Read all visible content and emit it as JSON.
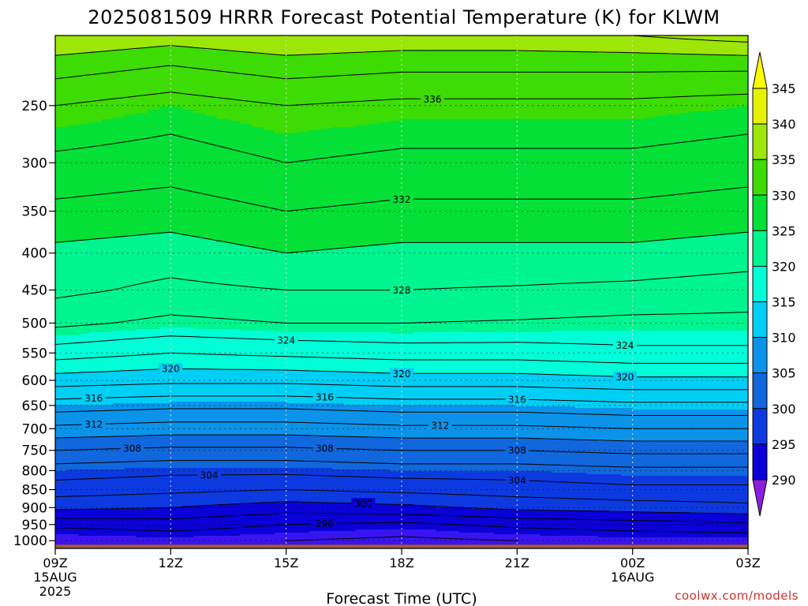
{
  "chart_data": {
    "type": "heatmap",
    "title": "2025081509 HRRR Forecast Potential Temperature (K) for KLWM",
    "xlabel": "Forecast Time (UTC)",
    "units": "K",
    "x_ticks": [
      {
        "hour": 0,
        "label": "09Z",
        "sub1": "15AUG",
        "sub2": "2025"
      },
      {
        "hour": 3,
        "label": "12Z",
        "sub1": "",
        "sub2": ""
      },
      {
        "hour": 6,
        "label": "15Z",
        "sub1": "",
        "sub2": ""
      },
      {
        "hour": 9,
        "label": "18Z",
        "sub1": "",
        "sub2": ""
      },
      {
        "hour": 12,
        "label": "21Z",
        "sub1": "",
        "sub2": ""
      },
      {
        "hour": 15,
        "label": "00Z",
        "sub1": "16AUG",
        "sub2": ""
      },
      {
        "hour": 18,
        "label": "03Z",
        "sub1": "",
        "sub2": ""
      }
    ],
    "xlim": [
      0,
      18
    ],
    "y_ticks": [
      250,
      300,
      350,
      400,
      450,
      500,
      550,
      600,
      650,
      700,
      750,
      800,
      850,
      900,
      950,
      1000
    ],
    "ylim": [
      1025,
      200
    ],
    "y_scale": "log",
    "colorbar": {
      "levels": [
        290,
        295,
        300,
        305,
        310,
        315,
        320,
        325,
        330,
        335,
        340,
        345
      ],
      "colors": [
        "#8a1fe0",
        "#3a14f0",
        "#0a00d8",
        "#0d3ae0",
        "#1167dd",
        "#0b93ea",
        "#00cff5",
        "#00ffd8",
        "#00f590",
        "#05e036",
        "#3ddc04",
        "#9de607",
        "#e6f204",
        "#fffe00"
      ]
    },
    "contour_step_K": 2,
    "contour_labels": [
      {
        "value": "336",
        "hour": 9.8
      },
      {
        "value": "332",
        "hour": 9.0
      },
      {
        "value": "328",
        "hour": 9.0
      },
      {
        "value": "324",
        "hour": 6.0
      },
      {
        "value": "324",
        "hour": 14.8
      },
      {
        "value": "320",
        "hour": 3.0
      },
      {
        "value": "320",
        "hour": 9.0
      },
      {
        "value": "320",
        "hour": 14.8
      },
      {
        "value": "316",
        "hour": 1.0
      },
      {
        "value": "316",
        "hour": 7.0
      },
      {
        "value": "316",
        "hour": 12.0
      },
      {
        "value": "312",
        "hour": 1.0
      },
      {
        "value": "312",
        "hour": 10.0
      },
      {
        "value": "308",
        "hour": 2.0
      },
      {
        "value": "308",
        "hour": 7.0
      },
      {
        "value": "308",
        "hour": 12.0
      },
      {
        "value": "304",
        "hour": 4.0
      },
      {
        "value": "304",
        "hour": 12.0
      },
      {
        "value": "300",
        "hour": 8.0
      },
      {
        "value": "296",
        "hour": 7.0
      }
    ],
    "profile_pressures": [
      1000,
      950,
      900,
      850,
      800,
      750,
      700,
      650,
      600,
      550,
      500,
      450,
      400,
      350,
      300,
      250,
      220,
      200
    ],
    "profiles": [
      {
        "hour": 0,
        "theta": [
          294.0,
          296.5,
          300.5,
          303.0,
          305.0,
          308.0,
          311.5,
          315.0,
          319.0,
          323.0,
          326.5,
          328.5,
          329.5,
          331.5,
          333.5,
          336.0,
          339.0,
          342.0
        ]
      },
      {
        "hour": 3,
        "theta": [
          294.5,
          297.0,
          300.0,
          302.5,
          304.5,
          307.5,
          311.0,
          314.5,
          318.5,
          322.0,
          325.5,
          327.5,
          329.0,
          331.0,
          333.0,
          335.0,
          338.0,
          341.0
        ]
      },
      {
        "hour": 6,
        "theta": [
          294.0,
          296.0,
          299.0,
          302.0,
          304.5,
          307.5,
          311.0,
          314.5,
          318.5,
          322.5,
          326.0,
          328.0,
          330.0,
          332.0,
          334.0,
          336.0,
          339.0,
          342.0
        ]
      },
      {
        "hour": 9,
        "theta": [
          293.5,
          295.5,
          299.5,
          302.5,
          305.0,
          308.0,
          311.5,
          315.0,
          319.0,
          323.0,
          326.0,
          328.0,
          329.5,
          331.5,
          333.5,
          335.5,
          338.5,
          341.5
        ]
      },
      {
        "hour": 12,
        "theta": [
          294.0,
          296.5,
          300.5,
          303.0,
          305.0,
          308.0,
          311.5,
          315.0,
          319.0,
          323.0,
          325.8,
          327.8,
          329.5,
          331.5,
          333.5,
          335.5,
          338.5,
          341.5
        ]
      },
      {
        "hour": 15,
        "theta": [
          294.5,
          297.0,
          301.0,
          303.5,
          305.5,
          308.5,
          312.0,
          315.5,
          319.5,
          323.5,
          325.5,
          327.5,
          329.5,
          331.5,
          333.5,
          335.5,
          338.5,
          342.0
        ]
      },
      {
        "hour": 18,
        "theta": [
          294.5,
          297.5,
          301.5,
          303.5,
          305.5,
          308.5,
          312.0,
          315.5,
          319.5,
          323.5,
          325.5,
          327.0,
          329.0,
          331.0,
          333.0,
          335.0,
          338.5,
          343.0
        ]
      }
    ],
    "terrain_top_hpa": 1013,
    "grid": true
  },
  "credit": "coolwx.com/models"
}
